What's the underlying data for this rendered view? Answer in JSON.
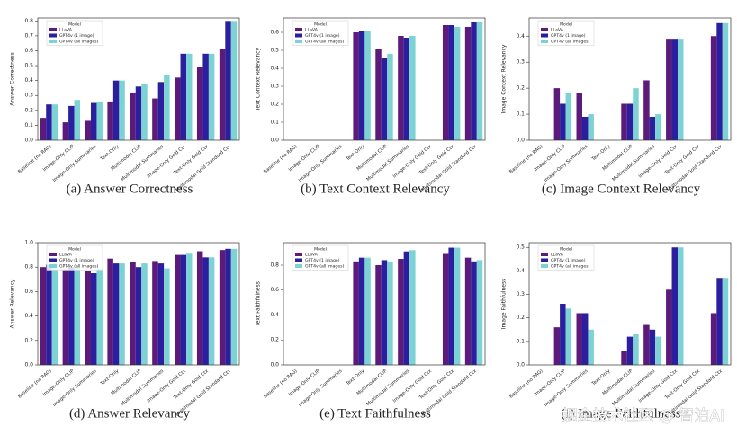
{
  "chart_data": [
    {
      "type": "bar",
      "caption": "(a) Answer Correctness",
      "ylabel": "Answer Correctness",
      "categories": [
        "Baseline (no RAG)",
        "Image-Only CLIP",
        "Image-Only Summaries",
        "Text-Only",
        "Multimodal CLIP",
        "Multimodal Summaries",
        "Image-Only Gold Ctx",
        "Text-Only Gold Ctx",
        "Multimodal Gold Standard Ctx"
      ],
      "series": [
        {
          "name": "LLaVA",
          "color": "#5c1a7a",
          "values": [
            0.15,
            0.12,
            0.13,
            0.26,
            0.32,
            0.28,
            0.42,
            0.49,
            0.61
          ]
        },
        {
          "name": "GPT4v (1 image)",
          "color": "#2b1fa0",
          "values": [
            0.24,
            0.23,
            0.25,
            0.4,
            0.36,
            0.39,
            0.58,
            0.58,
            0.8
          ]
        },
        {
          "name": "GPT4v (all images)",
          "color": "#7dd3d3",
          "values": [
            0.24,
            0.27,
            0.26,
            0.4,
            0.38,
            0.44,
            0.58,
            0.58,
            0.8
          ]
        }
      ],
      "ylim": [
        0,
        0.82
      ],
      "yticks": [
        {
          "value": 0,
          "label": "0.0"
        },
        0.1,
        0.2,
        0.3,
        0.4,
        0.5,
        0.6,
        0.7,
        0.8
      ],
      "legend_title": "Model",
      "legend": "upper left"
    },
    {
      "type": "bar",
      "caption": "(b) Text Context Relevancy",
      "ylabel": "Text Context Relevancy",
      "categories": [
        "Baseline (no RAG)",
        "Image-Only CLIP",
        "Image-Only Summaries",
        "Text-Only",
        "Multimodal CLIP",
        "Multimodal Summaries",
        "Image-Only Gold Ctx",
        "Text-Only Gold Ctx",
        "Multimodal Gold Standard Ctx"
      ],
      "series": [
        {
          "name": "LLaVA",
          "color": "#5c1a7a",
          "values": [
            null,
            null,
            null,
            0.6,
            0.51,
            0.58,
            null,
            0.64,
            0.63
          ]
        },
        {
          "name": "GPT4v (1 image)",
          "color": "#2b1fa0",
          "values": [
            null,
            null,
            null,
            0.61,
            0.46,
            0.57,
            null,
            0.64,
            0.66
          ]
        },
        {
          "name": "GPT4v (all images)",
          "color": "#7dd3d3",
          "values": [
            null,
            null,
            null,
            0.61,
            0.48,
            0.58,
            null,
            0.63,
            0.66
          ]
        }
      ],
      "ylim": [
        0,
        0.68
      ],
      "yticks": [
        {
          "value": 0,
          "label": "0.0"
        },
        0.1,
        0.2,
        0.3,
        0.4,
        0.5,
        0.6
      ],
      "legend_title": "Model",
      "legend": "upper left"
    },
    {
      "type": "bar",
      "caption": "(c) Image Context Relevancy",
      "ylabel": "Image Context Relevancy",
      "categories": [
        "Baseline (no RAG)",
        "Image-Only CLIP",
        "Image-Only Summaries",
        "Text-Only",
        "Multimodal CLIP",
        "Multimodal Summaries",
        "Image-Only Gold Ctx",
        "Text-Only Gold Ctx",
        "Multimodal Gold Standard Ctx"
      ],
      "series": [
        {
          "name": "LLaVA",
          "color": "#5c1a7a",
          "values": [
            null,
            0.2,
            0.18,
            null,
            0.14,
            0.23,
            0.39,
            null,
            0.4
          ]
        },
        {
          "name": "GPT4v (1 image)",
          "color": "#2b1fa0",
          "values": [
            null,
            0.14,
            0.09,
            null,
            0.14,
            0.09,
            0.39,
            null,
            0.45
          ]
        },
        {
          "name": "GPT4v (all images)",
          "color": "#7dd3d3",
          "values": [
            null,
            0.18,
            0.1,
            null,
            0.2,
            0.1,
            0.39,
            null,
            0.45
          ]
        }
      ],
      "ylim": [
        0,
        0.47
      ],
      "yticks": [
        {
          "value": 0,
          "label": "0.0"
        },
        0.1,
        0.2,
        0.3,
        0.4
      ],
      "legend_title": "Model",
      "legend": "upper left"
    },
    {
      "type": "bar",
      "caption": "(d) Answer Relevancy",
      "ylabel": "Answer Relevancy",
      "categories": [
        "Baseline (no RAG)",
        "Image-Only CLIP",
        "Image-Only Summaries",
        "Text-Only",
        "Multimodal CLIP",
        "Multimodal Summaries",
        "Image-Only Gold Ctx",
        "Text-Only Gold Ctx",
        "Multimodal Gold Standard Ctx"
      ],
      "series": [
        {
          "name": "LLaVA",
          "color": "#5c1a7a",
          "values": [
            0.8,
            0.78,
            0.77,
            0.87,
            0.84,
            0.85,
            0.9,
            0.93,
            0.94
          ]
        },
        {
          "name": "GPT4v (1 image)",
          "color": "#2b1fa0",
          "values": [
            0.82,
            0.8,
            0.75,
            0.83,
            0.8,
            0.83,
            0.9,
            0.88,
            0.95
          ]
        },
        {
          "name": "GPT4v (all images)",
          "color": "#7dd3d3",
          "values": [
            0.83,
            0.8,
            0.79,
            0.83,
            0.83,
            0.79,
            0.91,
            0.88,
            0.95
          ]
        }
      ],
      "ylim": [
        0,
        1.0
      ],
      "yticks": [
        {
          "value": 0,
          "label": "0.0"
        },
        0.2,
        0.4,
        0.6,
        0.8,
        {
          "value": 1,
          "label": "1.0"
        }
      ],
      "legend_title": "Model",
      "legend": "upper left"
    },
    {
      "type": "bar",
      "caption": "(e) Text Faithfulness",
      "ylabel": "Text Faithfulness",
      "categories": [
        "Baseline (no RAG)",
        "Image-Only CLIP",
        "Image-Only Summaries",
        "Text-Only",
        "Multimodal CLIP",
        "Multimodal Summaries",
        "Image-Only Gold Ctx",
        "Text-Only Gold Ctx",
        "Multimodal Gold Standard Ctx"
      ],
      "series": [
        {
          "name": "LLaVA",
          "color": "#5c1a7a",
          "values": [
            null,
            null,
            null,
            0.83,
            0.8,
            0.85,
            null,
            0.89,
            0.86
          ]
        },
        {
          "name": "GPT4v (1 image)",
          "color": "#2b1fa0",
          "values": [
            null,
            null,
            null,
            0.86,
            0.84,
            0.91,
            null,
            0.94,
            0.83
          ]
        },
        {
          "name": "GPT4v (all images)",
          "color": "#7dd3d3",
          "values": [
            null,
            null,
            null,
            0.86,
            0.83,
            0.92,
            null,
            0.94,
            0.84
          ]
        }
      ],
      "ylim": [
        0,
        0.98
      ],
      "yticks": [
        {
          "value": 0,
          "label": "0.0"
        },
        0.2,
        0.4,
        0.6,
        0.8
      ],
      "legend_title": "Model",
      "legend": "upper left"
    },
    {
      "type": "bar",
      "caption": "(f) Image Faithfulness",
      "ylabel": "Image Faithfulness",
      "categories": [
        "Baseline (no RAG)",
        "Image-Only CLIP",
        "Image-Only Summaries",
        "Text-Only",
        "Multimodal CLIP",
        "Multimodal Summaries",
        "Image-Only Gold Ctx",
        "Text-Only Gold Ctx",
        "Multimodal Gold Standard Ctx"
      ],
      "series": [
        {
          "name": "LLaVA",
          "color": "#5c1a7a",
          "values": [
            null,
            0.16,
            0.22,
            null,
            0.06,
            0.17,
            0.32,
            null,
            0.22
          ]
        },
        {
          "name": "GPT4v (1 image)",
          "color": "#2b1fa0",
          "values": [
            null,
            0.26,
            0.22,
            null,
            0.12,
            0.15,
            0.5,
            null,
            0.37
          ]
        },
        {
          "name": "GPT4v (all images)",
          "color": "#7dd3d3",
          "values": [
            null,
            0.24,
            0.15,
            null,
            0.13,
            0.12,
            0.5,
            null,
            0.37
          ]
        }
      ],
      "ylim": [
        0,
        0.52
      ],
      "yticks": [
        {
          "value": 0,
          "label": "0.0"
        },
        0.1,
        0.2,
        0.3,
        0.4,
        0.5
      ],
      "legend_title": "Model",
      "legend": "upper left"
    }
  ],
  "watermark": "掘金技术社区 @ 智泊AI"
}
